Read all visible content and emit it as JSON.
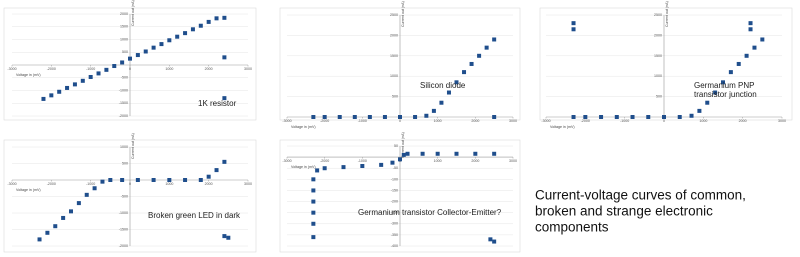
{
  "chart_data": [
    {
      "type": "scatter",
      "annotation": [
        "1K resistor"
      ],
      "xlabel": "Voltage in (mV)",
      "ylabel": "Current out (nA)",
      "color": "#1f4e8c",
      "xlim": [
        -3000,
        3000
      ],
      "ylim": [
        -2000,
        2000
      ],
      "xticks": [
        -3000,
        -2000,
        -1000,
        0,
        1000,
        2000,
        3000
      ],
      "yticks": [
        -2000,
        -1500,
        -1000,
        -500,
        500,
        1000,
        1500,
        2000
      ],
      "grid": true,
      "x": [
        -2200,
        -2000,
        -1800,
        -1600,
        -1400,
        -1200,
        -1000,
        -800,
        -600,
        -400,
        -200,
        0,
        200,
        400,
        600,
        800,
        1000,
        1200,
        1400,
        1600,
        1800,
        2000,
        2200,
        2400,
        2400,
        2400
      ],
      "values": [
        -1330,
        -1190,
        -1050,
        -900,
        -760,
        -620,
        -470,
        -330,
        -190,
        -40,
        100,
        250,
        390,
        530,
        680,
        820,
        970,
        1110,
        1250,
        1400,
        1540,
        1690,
        1830,
        1850,
        300,
        -1300
      ]
    },
    {
      "type": "scatter",
      "annotation": [
        "Silicon diode"
      ],
      "xlabel": "Voltage in (mV)",
      "ylabel": "Current out (nA)",
      "color": "#1f4e8c",
      "xlim": [
        -3000,
        3000
      ],
      "ylim": [
        0,
        2500
      ],
      "xticks": [
        -3000,
        -2000,
        -1000,
        0,
        1000,
        2000,
        3000
      ],
      "yticks": [
        500,
        1000,
        1500,
        2000,
        2500
      ],
      "grid": true,
      "x": [
        -2300,
        -2000,
        -1600,
        -1200,
        -800,
        -400,
        0,
        400,
        700,
        900,
        1100,
        1300,
        1500,
        1700,
        1900,
        2100,
        2300,
        2500,
        2500
      ],
      "values": [
        0,
        0,
        0,
        0,
        0,
        0,
        0,
        0,
        30,
        150,
        350,
        600,
        850,
        1100,
        1300,
        1500,
        1700,
        1900,
        0
      ]
    },
    {
      "type": "scatter",
      "annotation": [
        "Germanium PNP",
        "transistor junction"
      ],
      "xlabel": "Voltage in (mV)",
      "ylabel": "Current out (nA)",
      "color": "#1f4e8c",
      "xlim": [
        -3000,
        3000
      ],
      "ylim": [
        0,
        2500
      ],
      "xticks": [
        -3000,
        -2000,
        -1000,
        0,
        1000,
        2000,
        3000
      ],
      "yticks": [
        500,
        1000,
        1500,
        2000,
        2500
      ],
      "grid": true,
      "x": [
        -2300,
        -2000,
        -1600,
        -1200,
        -800,
        -400,
        0,
        400,
        700,
        900,
        1100,
        1300,
        1500,
        1700,
        1900,
        2100,
        2300,
        2500,
        -2300,
        -2300,
        2200,
        2200
      ],
      "values": [
        0,
        0,
        0,
        0,
        0,
        0,
        0,
        0,
        30,
        150,
        350,
        600,
        850,
        1100,
        1300,
        1500,
        1700,
        1900,
        2300,
        2150,
        2300,
        2150
      ]
    },
    {
      "type": "scatter",
      "annotation": [
        "Broken green LED in dark"
      ],
      "xlabel": "Voltage in (mV)",
      "ylabel": "Current out (nA)",
      "color": "#1f4e8c",
      "xlim": [
        -3000,
        3000
      ],
      "ylim": [
        -2000,
        1000
      ],
      "xticks": [
        -3000,
        -2000,
        -1000,
        0,
        1000,
        2000,
        3000
      ],
      "yticks": [
        -2000,
        -1500,
        -1000,
        -500,
        500,
        1000
      ],
      "grid": true,
      "x": [
        -2300,
        -2100,
        -1900,
        -1700,
        -1500,
        -1300,
        -1100,
        -900,
        -700,
        -500,
        -200,
        200,
        600,
        1000,
        1400,
        1800,
        2000,
        2200,
        2400,
        2400,
        2500
      ],
      "values": [
        -1800,
        -1600,
        -1400,
        -1150,
        -950,
        -700,
        -450,
        -250,
        -50,
        0,
        0,
        0,
        0,
        0,
        0,
        0,
        100,
        300,
        550,
        -1700,
        -1750
      ]
    },
    {
      "type": "scatter",
      "annotation": [
        "Germanium transistor Collector-Emitter?"
      ],
      "xlabel": "Voltage in (mV)",
      "ylabel": "Current out (nA)",
      "color": "#1f4e8c",
      "xlim": [
        -3000,
        3000
      ],
      "ylim": [
        -400,
        50
      ],
      "xticks": [
        -3000,
        -2000,
        -1000,
        0,
        1000,
        2000,
        3000
      ],
      "yticks": [
        -400,
        -350,
        -300,
        -250,
        -200,
        -150,
        -100,
        -50,
        50
      ],
      "grid": true,
      "x": [
        -2300,
        -2300,
        -2300,
        -2300,
        -2300,
        -2300,
        -2200,
        -2000,
        -1500,
        -1000,
        -500,
        -200,
        0,
        100,
        200,
        600,
        1000,
        1500,
        2000,
        2500,
        2400,
        2500
      ],
      "values": [
        -360,
        -300,
        -250,
        -200,
        -150,
        -100,
        -60,
        -50,
        -45,
        -40,
        -35,
        -25,
        -10,
        10,
        15,
        15,
        15,
        15,
        15,
        15,
        -370,
        -380
      ]
    }
  ],
  "caption": [
    "Current-voltage curves of common,",
    "broken and strange electronic",
    "components"
  ]
}
